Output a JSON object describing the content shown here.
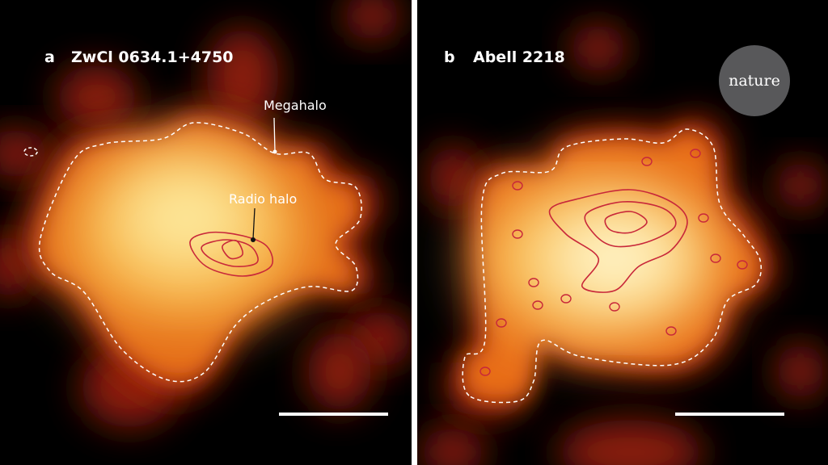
{
  "panels": [
    {
      "label": "a",
      "title": "ZwCl 0634.1+4750",
      "annotations": [
        "Megahalo",
        "Radio halo"
      ]
    },
    {
      "label": "b",
      "title": "Abell 2218"
    }
  ],
  "logo": "nature"
}
